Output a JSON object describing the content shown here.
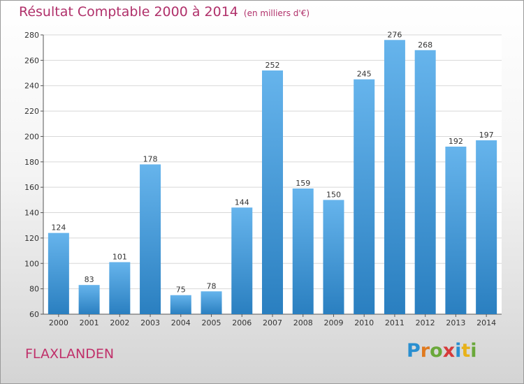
{
  "title": "Résultat Comptable 2000 à 2014",
  "unit": "(en milliers d'€)",
  "place": "FLAXLANDEN",
  "brand": {
    "letters": [
      "P",
      "r",
      "o",
      "x",
      "i",
      "t",
      "i"
    ],
    "colors": [
      "#2a8fd0",
      "#e07a1f",
      "#6aa83a",
      "#d63a3a",
      "#2a8fd0",
      "#e8b21a",
      "#6aa83a"
    ]
  },
  "colors": {
    "bar_light": "#66b4ec",
    "bar_dark": "#2a7fc0",
    "grid": "#d8d8d8"
  },
  "chart_data": {
    "type": "bar",
    "categories": [
      "2000",
      "2001",
      "2002",
      "2003",
      "2004",
      "2005",
      "2006",
      "2007",
      "2008",
      "2009",
      "2010",
      "2011",
      "2012",
      "2013",
      "2014"
    ],
    "values": [
      124,
      83,
      101,
      178,
      75,
      78,
      144,
      252,
      159,
      150,
      245,
      276,
      268,
      192,
      197
    ],
    "title": "Résultat Comptable 2000 à 2014",
    "ylim": [
      60,
      280
    ],
    "yticks": [
      60,
      80,
      100,
      120,
      140,
      160,
      180,
      200,
      220,
      240,
      260,
      280
    ],
    "grid": true,
    "data_labels": true
  }
}
